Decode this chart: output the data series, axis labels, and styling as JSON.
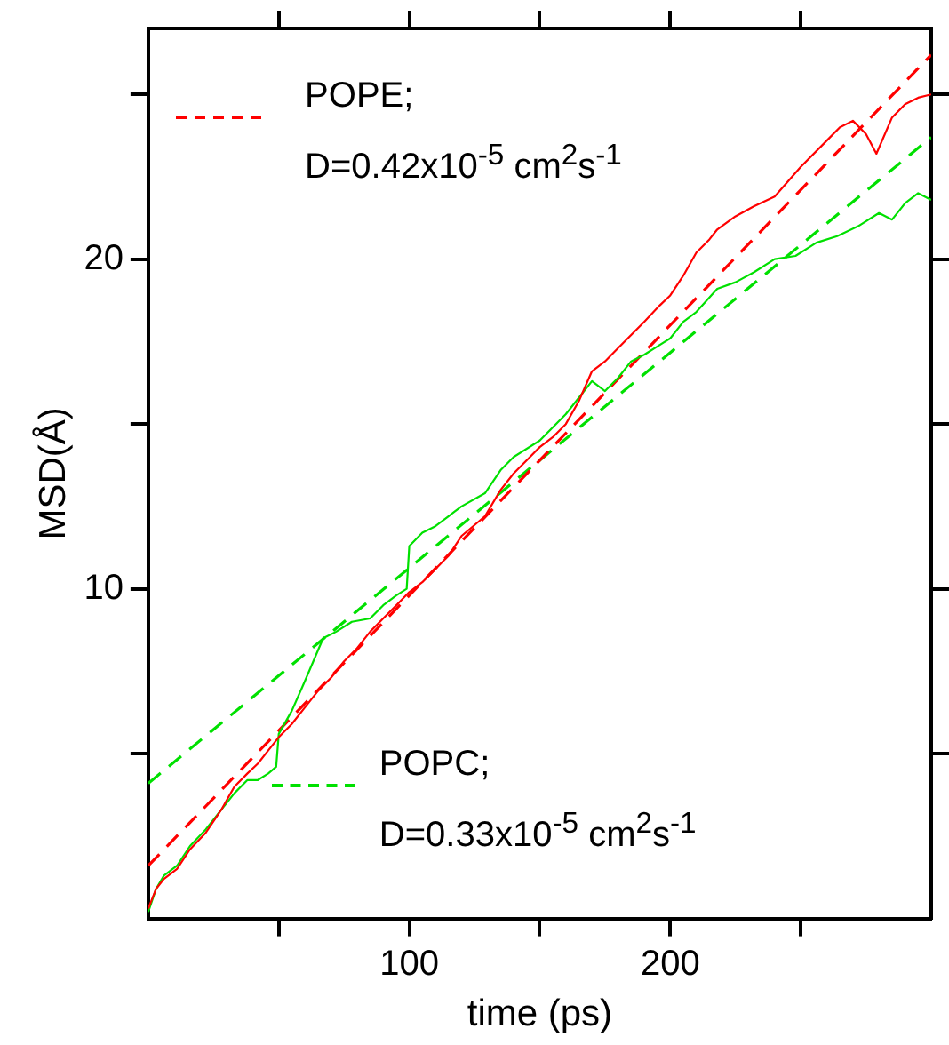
{
  "chart_data": {
    "type": "line",
    "xlabel": "time (ps)",
    "ylabel": "MSD(Å)",
    "xlim": [
      0,
      300
    ],
    "ylim": [
      0,
      27
    ],
    "xticks": [
      {
        "value": 50,
        "label": null
      },
      100,
      {
        "value": 150,
        "label": null
      },
      200,
      {
        "value": 250,
        "label": null
      }
    ],
    "yticks": [
      {
        "value": 5,
        "label": null
      },
      10,
      {
        "value": 15,
        "label": null
      },
      20,
      {
        "value": 25,
        "label": null
      }
    ],
    "marker": "none",
    "legend": "left",
    "series": [
      {
        "color": "#ff0000",
        "line_style": "solid",
        "x": [
          0,
          3,
          6,
          11,
          16,
          22,
          28,
          33,
          38,
          42,
          46,
          50,
          55,
          60,
          65,
          70,
          75,
          80,
          85,
          90,
          95,
          100,
          105,
          110,
          115,
          120,
          129,
          135,
          140,
          145,
          150,
          155,
          160,
          165,
          170,
          175,
          180,
          185,
          190,
          196,
          200,
          205,
          210,
          215,
          218,
          225,
          232,
          240,
          250,
          260,
          265,
          270,
          275,
          279,
          285,
          290,
          295,
          300
        ],
        "values": [
          0.3,
          0.9,
          1.2,
          1.5,
          2.1,
          2.6,
          3.3,
          4.0,
          4.4,
          4.7,
          5.1,
          5.5,
          5.9,
          6.4,
          6.9,
          7.3,
          7.8,
          8.2,
          8.7,
          9.1,
          9.5,
          9.9,
          10.2,
          10.6,
          11.0,
          11.6,
          12.2,
          13.0,
          13.5,
          13.9,
          14.3,
          14.6,
          15.0,
          15.7,
          16.6,
          16.9,
          17.3,
          17.7,
          18.1,
          18.6,
          18.9,
          19.5,
          20.2,
          20.6,
          20.9,
          21.3,
          21.6,
          21.9,
          22.8,
          23.6,
          24.0,
          24.2,
          23.8,
          23.2,
          24.3,
          24.7,
          24.9,
          25.0
        ]
      },
      {
        "color": "#00e000",
        "line_style": "solid",
        "x": [
          0,
          3,
          6,
          11,
          16,
          22,
          28,
          33,
          38,
          42,
          46,
          49,
          50,
          55,
          60,
          67,
          72,
          78,
          85,
          90,
          95,
          99,
          100,
          105,
          110,
          115,
          120,
          129,
          135,
          140,
          150,
          160,
          165,
          170,
          175,
          180,
          185,
          190,
          196,
          200,
          205,
          210,
          218,
          225,
          232,
          240,
          248,
          256,
          264,
          272,
          280,
          285,
          290,
          295,
          300
        ],
        "values": [
          0.2,
          0.9,
          1.3,
          1.6,
          2.2,
          2.7,
          3.3,
          3.8,
          4.2,
          4.2,
          4.4,
          4.6,
          5.6,
          6.3,
          7.2,
          8.5,
          8.7,
          9.0,
          9.1,
          9.5,
          9.8,
          10.0,
          11.3,
          11.7,
          11.9,
          12.2,
          12.5,
          12.9,
          13.6,
          14.0,
          14.5,
          15.3,
          15.8,
          16.3,
          16.0,
          16.4,
          16.9,
          17.1,
          17.4,
          17.6,
          18.1,
          18.4,
          19.1,
          19.3,
          19.6,
          20.0,
          20.1,
          20.5,
          20.7,
          21.0,
          21.4,
          21.2,
          21.7,
          22.0,
          21.8
        ]
      },
      {
        "name": "POPE;\nD=0.42x10$^{-5}$ cm$^{2}$s$^{-1}$",
        "color": "#ff0000",
        "line_style": "dashed",
        "x": [
          0,
          300
        ],
        "values": [
          1.6,
          26.2
        ]
      },
      {
        "name": "POPC;\nD=0.33x10$^{-5}$ cm$^{2}$s$^{-1}$",
        "color": "#00e000",
        "line_style": "dashed",
        "x": [
          0,
          300
        ],
        "values": [
          4.1,
          23.7
        ]
      }
    ]
  }
}
